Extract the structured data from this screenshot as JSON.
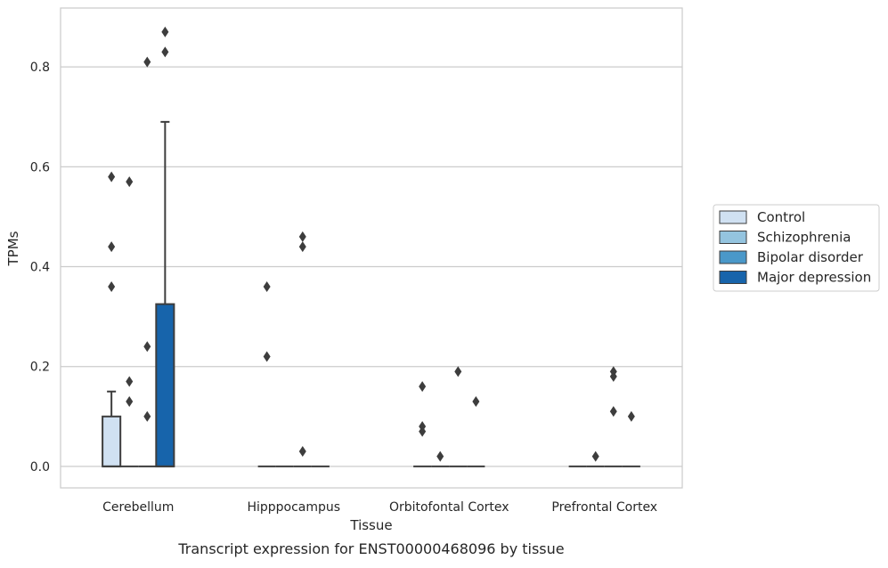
{
  "chart_data": {
    "type": "box",
    "xlabel": "Tissue",
    "ylabel": "TPMs",
    "caption": "Transcript expression for ENST00000468096 by tissue",
    "ylim": [
      -0.043,
      0.918
    ],
    "yticks": [
      0.0,
      0.2,
      0.4,
      0.6,
      0.8
    ],
    "ytick_labels": [
      "0.0",
      "0.2",
      "0.4",
      "0.6",
      "0.8"
    ],
    "grid": "horizontal",
    "legend_position": "right",
    "categories": [
      "Cerebellum",
      "Hipppocampus",
      "Orbitofontal Cortex",
      "Prefrontal Cortex"
    ],
    "series": [
      {
        "name": "Control",
        "color": "#d0e1f2",
        "boxes": [
          {
            "q1": 0.0,
            "median": 0.0,
            "q3": 0.1,
            "whisker_low": 0.0,
            "whisker_high": 0.15,
            "outliers": [
              0.36,
              0.44,
              0.58
            ]
          },
          {
            "q1": 0.0,
            "median": 0.0,
            "q3": 0.0,
            "whisker_low": 0.0,
            "whisker_high": 0.0,
            "outliers": [
              0.22,
              0.36
            ]
          },
          {
            "q1": 0.0,
            "median": 0.0,
            "q3": 0.0,
            "whisker_low": 0.0,
            "whisker_high": 0.0,
            "outliers": [
              0.07,
              0.08,
              0.16
            ]
          },
          {
            "q1": 0.0,
            "median": 0.0,
            "q3": 0.0,
            "whisker_low": 0.0,
            "whisker_high": 0.0,
            "outliers": []
          }
        ]
      },
      {
        "name": "Schizophrenia",
        "color": "#94c4df",
        "boxes": [
          {
            "q1": 0.0,
            "median": 0.0,
            "q3": 0.0,
            "whisker_low": 0.0,
            "whisker_high": 0.0,
            "outliers": [
              0.13,
              0.17,
              0.57
            ]
          },
          {
            "q1": 0.0,
            "median": 0.0,
            "q3": 0.0,
            "whisker_low": 0.0,
            "whisker_high": 0.0,
            "outliers": []
          },
          {
            "q1": 0.0,
            "median": 0.0,
            "q3": 0.0,
            "whisker_low": 0.0,
            "whisker_high": 0.0,
            "outliers": [
              0.02
            ]
          },
          {
            "q1": 0.0,
            "median": 0.0,
            "q3": 0.0,
            "whisker_low": 0.0,
            "whisker_high": 0.0,
            "outliers": [
              0.02
            ]
          }
        ]
      },
      {
        "name": "Bipolar disorder",
        "color": "#4a98c9",
        "boxes": [
          {
            "q1": 0.0,
            "median": 0.0,
            "q3": 0.0,
            "whisker_low": 0.0,
            "whisker_high": 0.0,
            "outliers": [
              0.1,
              0.24,
              0.81
            ]
          },
          {
            "q1": 0.0,
            "median": 0.0,
            "q3": 0.0,
            "whisker_low": 0.0,
            "whisker_high": 0.0,
            "outliers": [
              0.03,
              0.44,
              0.46
            ]
          },
          {
            "q1": 0.0,
            "median": 0.0,
            "q3": 0.0,
            "whisker_low": 0.0,
            "whisker_high": 0.0,
            "outliers": [
              0.19
            ]
          },
          {
            "q1": 0.0,
            "median": 0.0,
            "q3": 0.0,
            "whisker_low": 0.0,
            "whisker_high": 0.0,
            "outliers": [
              0.11,
              0.18,
              0.19
            ]
          }
        ]
      },
      {
        "name": "Major depression",
        "color": "#1764ab",
        "boxes": [
          {
            "q1": 0.0,
            "median": 0.0,
            "q3": 0.325,
            "whisker_low": 0.0,
            "whisker_high": 0.69,
            "outliers": [
              0.83,
              0.87
            ]
          },
          {
            "q1": 0.0,
            "median": 0.0,
            "q3": 0.0,
            "whisker_low": 0.0,
            "whisker_high": 0.0,
            "outliers": []
          },
          {
            "q1": 0.0,
            "median": 0.0,
            "q3": 0.0,
            "whisker_low": 0.0,
            "whisker_high": 0.0,
            "outliers": [
              0.13
            ]
          },
          {
            "q1": 0.0,
            "median": 0.0,
            "q3": 0.0,
            "whisker_low": 0.0,
            "whisker_high": 0.0,
            "outliers": [
              0.1
            ]
          }
        ]
      }
    ]
  }
}
